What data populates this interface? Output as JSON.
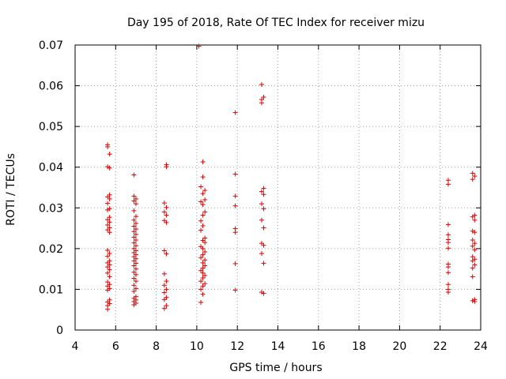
{
  "chart_data": {
    "type": "scatter",
    "title": "Day 195 of 2018, Rate Of TEC Index for receiver mizu",
    "xlabel": "GPS time / hours",
    "ylabel": "ROTI / TECUs",
    "xlim": [
      4,
      24
    ],
    "ylim": [
      0,
      0.07
    ],
    "xticks": [
      "4",
      "6",
      "8",
      "10",
      "12",
      "14",
      "16",
      "18",
      "20",
      "22",
      "24"
    ],
    "yticks": [
      "0",
      "0.01",
      "0.02",
      "0.03",
      "0.04",
      "0.05",
      "0.06",
      "0.07"
    ],
    "grid": true,
    "marker": "+",
    "color": "#dd0000",
    "series": [
      {
        "name": "ROTI",
        "points": [
          [
            5.6,
            0.0455
          ],
          [
            5.6,
            0.045
          ],
          [
            5.7,
            0.0432
          ],
          [
            5.6,
            0.0401
          ],
          [
            5.7,
            0.0398
          ],
          [
            5.7,
            0.0332
          ],
          [
            5.6,
            0.0327
          ],
          [
            5.7,
            0.0322
          ],
          [
            5.6,
            0.0311
          ],
          [
            5.7,
            0.0298
          ],
          [
            5.6,
            0.0295
          ],
          [
            5.7,
            0.0277
          ],
          [
            5.6,
            0.0271
          ],
          [
            5.7,
            0.0265
          ],
          [
            5.6,
            0.0258
          ],
          [
            5.7,
            0.0251
          ],
          [
            5.6,
            0.0246
          ],
          [
            5.7,
            0.024
          ],
          [
            5.6,
            0.0196
          ],
          [
            5.7,
            0.0188
          ],
          [
            5.6,
            0.0181
          ],
          [
            5.7,
            0.017
          ],
          [
            5.6,
            0.0165
          ],
          [
            5.7,
            0.016
          ],
          [
            5.6,
            0.0155
          ],
          [
            5.7,
            0.0148
          ],
          [
            5.6,
            0.014
          ],
          [
            5.7,
            0.0131
          ],
          [
            5.6,
            0.0118
          ],
          [
            5.7,
            0.0112
          ],
          [
            5.6,
            0.0108
          ],
          [
            5.7,
            0.0102
          ],
          [
            5.6,
            0.0098
          ],
          [
            5.7,
            0.0074
          ],
          [
            5.6,
            0.0069
          ],
          [
            5.7,
            0.0065
          ],
          [
            5.6,
            0.006
          ],
          [
            5.6,
            0.0051
          ],
          [
            6.9,
            0.0381
          ],
          [
            6.9,
            0.0329
          ],
          [
            7.0,
            0.0322
          ],
          [
            6.9,
            0.0317
          ],
          [
            7.0,
            0.031
          ],
          [
            6.9,
            0.0293
          ],
          [
            7.0,
            0.0279
          ],
          [
            6.9,
            0.027
          ],
          [
            7.0,
            0.0262
          ],
          [
            6.9,
            0.0255
          ],
          [
            7.0,
            0.0248
          ],
          [
            6.9,
            0.0242
          ],
          [
            7.0,
            0.0235
          ],
          [
            6.9,
            0.0228
          ],
          [
            7.0,
            0.0221
          ],
          [
            6.9,
            0.0214
          ],
          [
            7.0,
            0.0207
          ],
          [
            6.9,
            0.02
          ],
          [
            7.0,
            0.0195
          ],
          [
            6.9,
            0.019
          ],
          [
            7.0,
            0.0185
          ],
          [
            6.9,
            0.018
          ],
          [
            7.0,
            0.0175
          ],
          [
            6.9,
            0.017
          ],
          [
            7.0,
            0.0164
          ],
          [
            6.9,
            0.0158
          ],
          [
            7.0,
            0.015
          ],
          [
            6.9,
            0.0142
          ],
          [
            7.0,
            0.0136
          ],
          [
            6.9,
            0.0127
          ],
          [
            7.0,
            0.012
          ],
          [
            6.9,
            0.011
          ],
          [
            7.0,
            0.0102
          ],
          [
            6.9,
            0.0095
          ],
          [
            7.0,
            0.0082
          ],
          [
            6.9,
            0.0078
          ],
          [
            7.0,
            0.0074
          ],
          [
            6.9,
            0.007
          ],
          [
            7.0,
            0.0066
          ],
          [
            6.9,
            0.0062
          ],
          [
            8.5,
            0.0406
          ],
          [
            8.5,
            0.0401
          ],
          [
            8.4,
            0.0312
          ],
          [
            8.5,
            0.0301
          ],
          [
            8.4,
            0.029
          ],
          [
            8.5,
            0.0282
          ],
          [
            8.4,
            0.0269
          ],
          [
            8.5,
            0.0264
          ],
          [
            8.4,
            0.0195
          ],
          [
            8.5,
            0.0187
          ],
          [
            8.4,
            0.0138
          ],
          [
            8.5,
            0.012
          ],
          [
            8.4,
            0.011
          ],
          [
            8.5,
            0.01
          ],
          [
            8.4,
            0.0092
          ],
          [
            8.5,
            0.008
          ],
          [
            8.4,
            0.0075
          ],
          [
            8.5,
            0.006
          ],
          [
            8.4,
            0.0053
          ],
          [
            10.1,
            0.0697
          ],
          [
            10.3,
            0.0413
          ],
          [
            10.3,
            0.0376
          ],
          [
            10.2,
            0.0352
          ],
          [
            10.4,
            0.0343
          ],
          [
            10.3,
            0.0335
          ],
          [
            10.4,
            0.032
          ],
          [
            10.2,
            0.0315
          ],
          [
            10.3,
            0.0308
          ],
          [
            10.4,
            0.029
          ],
          [
            10.3,
            0.0282
          ],
          [
            10.2,
            0.0268
          ],
          [
            10.3,
            0.0256
          ],
          [
            10.2,
            0.0245
          ],
          [
            10.4,
            0.0226
          ],
          [
            10.3,
            0.022
          ],
          [
            10.4,
            0.0215
          ],
          [
            10.2,
            0.0205
          ],
          [
            10.3,
            0.02
          ],
          [
            10.4,
            0.0192
          ],
          [
            10.3,
            0.0185
          ],
          [
            10.2,
            0.0178
          ],
          [
            10.4,
            0.0172
          ],
          [
            10.3,
            0.0165
          ],
          [
            10.4,
            0.0158
          ],
          [
            10.3,
            0.0152
          ],
          [
            10.2,
            0.0146
          ],
          [
            10.3,
            0.014
          ],
          [
            10.4,
            0.0134
          ],
          [
            10.3,
            0.0128
          ],
          [
            10.2,
            0.012
          ],
          [
            10.4,
            0.0114
          ],
          [
            10.3,
            0.0108
          ],
          [
            10.2,
            0.01
          ],
          [
            10.3,
            0.0088
          ],
          [
            10.2,
            0.0068
          ],
          [
            11.9,
            0.0534
          ],
          [
            11.9,
            0.0383
          ],
          [
            11.9,
            0.0329
          ],
          [
            11.9,
            0.0305
          ],
          [
            11.9,
            0.0249
          ],
          [
            11.9,
            0.024
          ],
          [
            11.9,
            0.0163
          ],
          [
            11.9,
            0.0098
          ],
          [
            13.2,
            0.0603
          ],
          [
            13.3,
            0.0572
          ],
          [
            13.2,
            0.0566
          ],
          [
            13.2,
            0.0558
          ],
          [
            13.3,
            0.0348
          ],
          [
            13.2,
            0.034
          ],
          [
            13.3,
            0.0333
          ],
          [
            13.2,
            0.031
          ],
          [
            13.3,
            0.0298
          ],
          [
            13.2,
            0.027
          ],
          [
            13.3,
            0.0251
          ],
          [
            13.2,
            0.0213
          ],
          [
            13.3,
            0.0208
          ],
          [
            13.2,
            0.0188
          ],
          [
            13.3,
            0.0164
          ],
          [
            13.2,
            0.0093
          ],
          [
            13.3,
            0.009
          ],
          [
            22.4,
            0.0368
          ],
          [
            22.4,
            0.0358
          ],
          [
            22.4,
            0.0259
          ],
          [
            22.4,
            0.0234
          ],
          [
            22.4,
            0.0222
          ],
          [
            22.4,
            0.0215
          ],
          [
            22.4,
            0.0201
          ],
          [
            22.4,
            0.0162
          ],
          [
            22.4,
            0.0155
          ],
          [
            22.4,
            0.0141
          ],
          [
            22.4,
            0.0112
          ],
          [
            22.4,
            0.01
          ],
          [
            22.4,
            0.0093
          ],
          [
            23.6,
            0.0385
          ],
          [
            23.7,
            0.0378
          ],
          [
            23.6,
            0.037
          ],
          [
            23.7,
            0.0282
          ],
          [
            23.6,
            0.0278
          ],
          [
            23.7,
            0.027
          ],
          [
            23.6,
            0.0243
          ],
          [
            23.7,
            0.024
          ],
          [
            23.6,
            0.0221
          ],
          [
            23.7,
            0.0213
          ],
          [
            23.6,
            0.0206
          ],
          [
            23.7,
            0.0197
          ],
          [
            23.6,
            0.018
          ],
          [
            23.7,
            0.0174
          ],
          [
            23.6,
            0.017
          ],
          [
            23.7,
            0.016
          ],
          [
            23.6,
            0.0152
          ],
          [
            23.6,
            0.0131
          ],
          [
            23.7,
            0.0075
          ],
          [
            23.6,
            0.0072
          ],
          [
            23.7,
            0.007
          ]
        ]
      }
    ]
  }
}
